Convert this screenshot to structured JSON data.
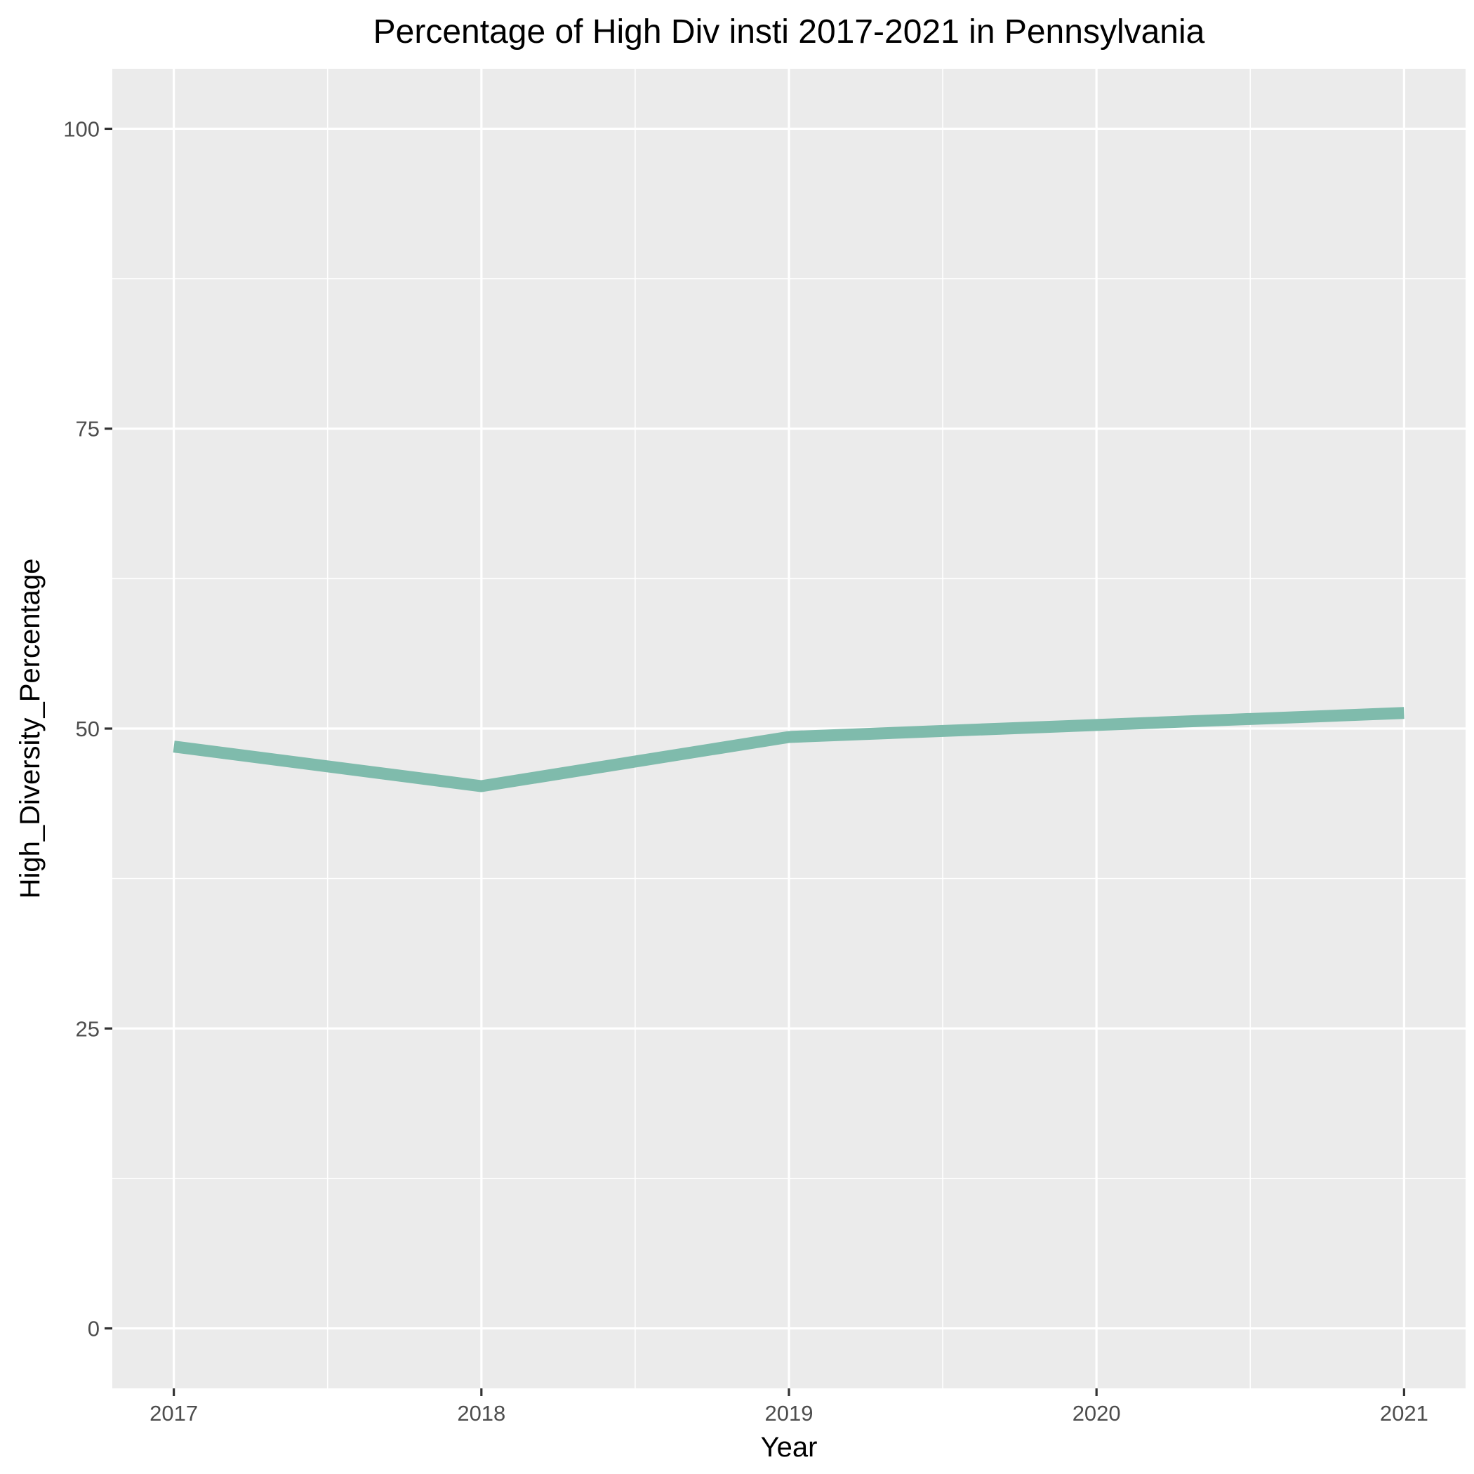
{
  "chart_data": {
    "type": "line",
    "title": "Percentage of High Div insti 2017-2021 in Pennsylvania",
    "xlabel": "Year",
    "ylabel": "High_Diversity_Percentage",
    "x": [
      2017,
      2018,
      2019,
      2020,
      2021
    ],
    "x_tick_labels": [
      "2017",
      "2018",
      "2019",
      "2020",
      "2021"
    ],
    "y_ticks": [
      0,
      25,
      50,
      75,
      100
    ],
    "y_tick_labels": [
      "0",
      "25",
      "50",
      "75",
      "100"
    ],
    "ylim": [
      -5,
      105
    ],
    "xlim": [
      2016.8,
      2021.2
    ],
    "grid": true,
    "legend": "none",
    "series": [
      {
        "values": [
          48.5,
          45.2,
          49.3,
          50.3,
          51.3
        ],
        "color": "#7fbbac"
      }
    ]
  }
}
